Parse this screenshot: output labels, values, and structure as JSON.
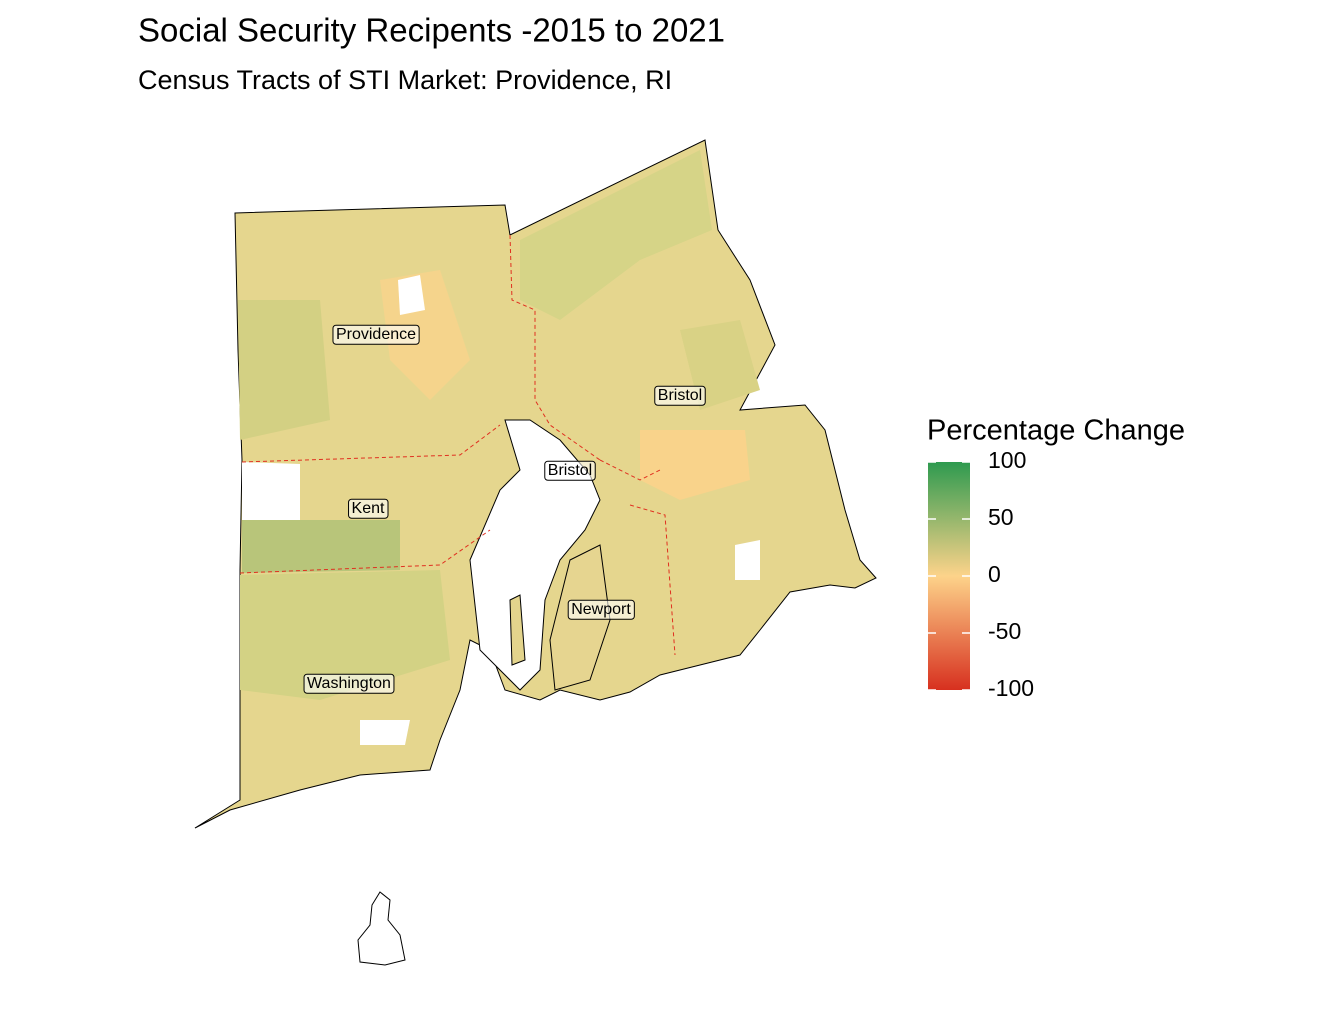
{
  "title": "Social Security Recipents -2015 to 2021",
  "subtitle": "Census Tracts of STI Market: Providence, RI",
  "legend": {
    "title": "Percentage Change",
    "limits": [
      -100,
      100
    ],
    "ticks": [
      100,
      50,
      0,
      -50,
      -100
    ],
    "colors": [
      "#d7301f",
      "#fdd38a",
      "#2e9a4f"
    ]
  },
  "labels": [
    "Providence",
    "Kent",
    "Washington",
    "Bristol",
    "Bristol",
    "Newport"
  ]
}
